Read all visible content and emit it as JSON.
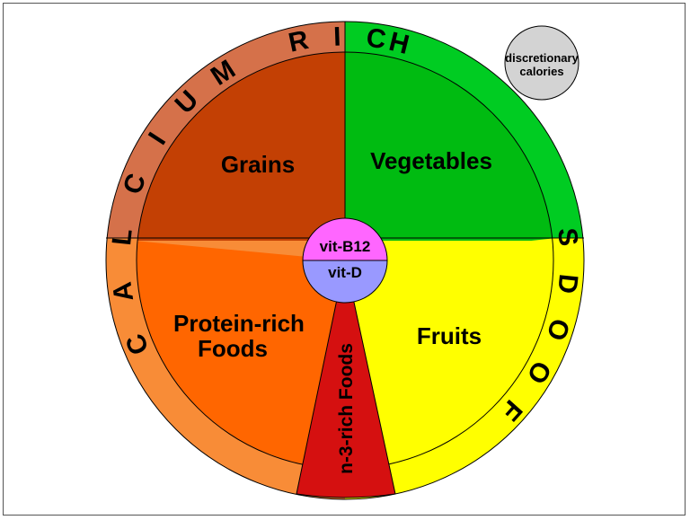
{
  "colors": {
    "ring_left": "#d5714a",
    "ring_left_lower": "#f88c37",
    "ring_right": "#00cc22",
    "ring_right_lower": "#ffff00",
    "grains": "#c34004",
    "vegetables": "#00bb11",
    "fruits": "#ffff00",
    "protein": "#ff6600",
    "n3": "#d51010",
    "vitb12": "#ff66ff",
    "vitd": "#9999ff",
    "discretionary": "#d3d3d3"
  },
  "sections": {
    "grains": "Grains",
    "vegetables": "Vegetables",
    "fruits": "Fruits",
    "protein_line1": "Protein-rich",
    "protein_line2": "Foods",
    "n3": "n-3-rich Foods"
  },
  "center": {
    "top": "vit-B12",
    "bottom": "vit-D"
  },
  "ring_text": {
    "calcium_letters": [
      "C",
      "A",
      "L",
      "C",
      "I",
      "U",
      "M"
    ],
    "rich_letters": [
      "R",
      "I",
      "C",
      "H"
    ],
    "foods_letters": [
      "F",
      "O",
      "O",
      "D",
      "S"
    ]
  },
  "discretionary": {
    "line1": "discretionary",
    "line2": "calories"
  }
}
